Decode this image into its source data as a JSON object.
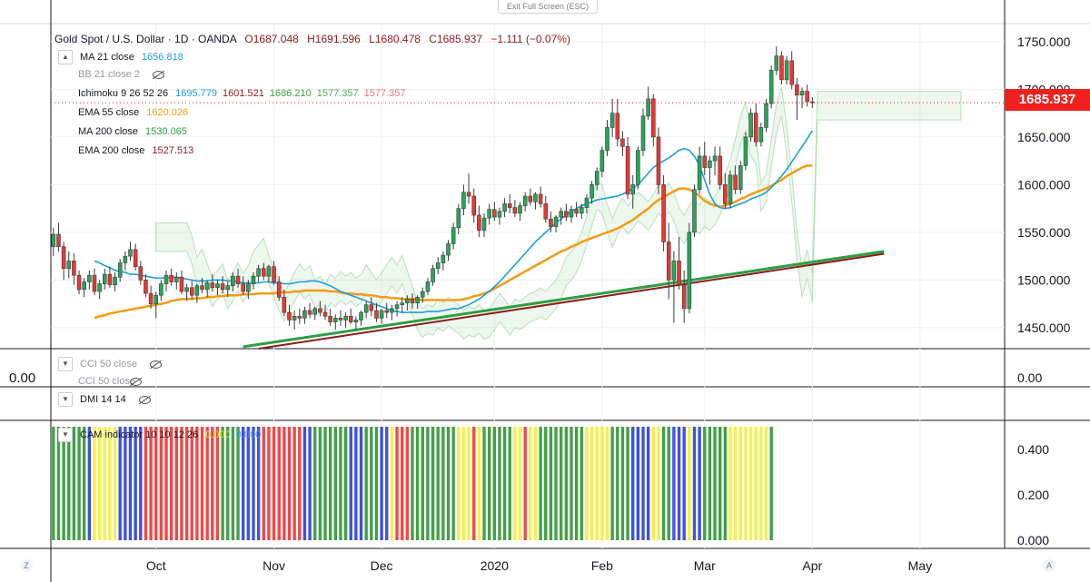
{
  "header": {
    "exit_fullscreen": "Exit Full Screen (ESC)",
    "symbol": "Gold Spot / U.S. Dollar · 1D · OANDA",
    "open": "O1687.048",
    "high": "H1691.596",
    "low": "L1680.478",
    "close": "C1685.937",
    "change": "−1.111 (−0.07%)"
  },
  "indicators": [
    {
      "name": "MA 21 close",
      "values": [
        "1656.818"
      ],
      "colors": [
        "#1e9ed8"
      ],
      "hidden": false
    },
    {
      "name": "BB 21 close 2",
      "values": [],
      "colors": [],
      "hidden": true
    },
    {
      "name": "Ichimoku 9 26 52 26",
      "values": [
        "1695.779",
        "1601.521",
        "1686.210",
        "1577.357",
        "1577.357"
      ],
      "colors": [
        "#2196f3",
        "#8a1c1c",
        "#43a047",
        "#4caf50",
        "#e57373"
      ],
      "hidden": false
    },
    {
      "name": "EMA 55 close",
      "values": [
        "1620.026"
      ],
      "colors": [
        "#f39c12"
      ],
      "hidden": false
    },
    {
      "name": "MA 200 close",
      "values": [
        "1530.065"
      ],
      "colors": [
        "#2e9e44"
      ],
      "hidden": false
    },
    {
      "name": "EMA 200 close",
      "values": [
        "1527.513"
      ],
      "colors": [
        "#8a1c1c"
      ],
      "hidden": false
    }
  ],
  "sub_panels": {
    "cci_1": "CCI 50 close",
    "cci_2": "CCI 50 close",
    "dmi": "DMI 14 14",
    "cam": "CAM indicator 10 10 12 26",
    "cam_values": [
      "0.000",
      "0.000"
    ],
    "cci_zero": "0.00",
    "cci_zero_left": "0.00"
  },
  "price_badge": "1685.937",
  "corner_left": "Z",
  "corner_right": "A",
  "chart_data": {
    "type": "candlestick",
    "price_axis": {
      "ticks": [
        1450,
        1500,
        1550,
        1600,
        1650,
        1700,
        1750
      ],
      "labels": [
        "1450.000",
        "1500.000",
        "1550.000",
        "1600.000",
        "1650.000",
        "1700.000",
        "1750.000"
      ],
      "range": [
        1428,
        1768
      ]
    },
    "cam_axis": {
      "ticks": [
        0,
        0.2,
        0.4
      ],
      "labels": [
        "0.000",
        "0.200",
        "0.400"
      ],
      "range": [
        0,
        0.5
      ]
    },
    "x_labels": [
      "Oct",
      "Nov",
      "Dec",
      "2020",
      "Feb",
      "Mar",
      "Apr",
      "May"
    ],
    "x_label_bars": [
      20,
      43,
      64,
      86,
      107,
      127,
      148,
      169
    ],
    "total_slots": 186,
    "last_bar": 161,
    "current_price": 1685.937,
    "ohlc": [
      [
        1535,
        1555,
        1525,
        1548
      ],
      [
        1548,
        1560,
        1530,
        1535
      ],
      [
        1535,
        1540,
        1500,
        1512
      ],
      [
        1512,
        1530,
        1502,
        1520
      ],
      [
        1520,
        1528,
        1495,
        1505
      ],
      [
        1505,
        1510,
        1485,
        1490
      ],
      [
        1490,
        1502,
        1482,
        1498
      ],
      [
        1498,
        1510,
        1490,
        1505
      ],
      [
        1505,
        1512,
        1484,
        1488
      ],
      [
        1488,
        1500,
        1480,
        1496
      ],
      [
        1496,
        1512,
        1490,
        1506
      ],
      [
        1506,
        1514,
        1492,
        1495
      ],
      [
        1495,
        1508,
        1488,
        1503
      ],
      [
        1503,
        1522,
        1498,
        1518
      ],
      [
        1518,
        1530,
        1510,
        1525
      ],
      [
        1525,
        1540,
        1520,
        1532
      ],
      [
        1532,
        1538,
        1510,
        1514
      ],
      [
        1514,
        1520,
        1495,
        1500
      ],
      [
        1500,
        1506,
        1482,
        1486
      ],
      [
        1486,
        1494,
        1470,
        1475
      ],
      [
        1475,
        1488,
        1460,
        1484
      ],
      [
        1484,
        1500,
        1478,
        1496
      ],
      [
        1496,
        1510,
        1488,
        1505
      ],
      [
        1505,
        1512,
        1494,
        1498
      ],
      [
        1498,
        1508,
        1490,
        1503
      ],
      [
        1503,
        1510,
        1485,
        1488
      ],
      [
        1488,
        1496,
        1478,
        1492
      ],
      [
        1492,
        1500,
        1480,
        1484
      ],
      [
        1484,
        1496,
        1476,
        1494
      ],
      [
        1494,
        1502,
        1486,
        1490
      ],
      [
        1490,
        1500,
        1482,
        1497
      ],
      [
        1497,
        1506,
        1488,
        1492
      ],
      [
        1492,
        1500,
        1484,
        1496
      ],
      [
        1496,
        1504,
        1486,
        1490
      ],
      [
        1490,
        1498,
        1482,
        1494
      ],
      [
        1494,
        1508,
        1488,
        1504
      ],
      [
        1504,
        1512,
        1492,
        1496
      ],
      [
        1496,
        1504,
        1484,
        1488
      ],
      [
        1488,
        1500,
        1480,
        1496
      ],
      [
        1496,
        1508,
        1490,
        1504
      ],
      [
        1504,
        1516,
        1498,
        1512
      ],
      [
        1512,
        1518,
        1500,
        1504
      ],
      [
        1504,
        1516,
        1498,
        1514
      ],
      [
        1514,
        1520,
        1495,
        1498
      ],
      [
        1498,
        1504,
        1478,
        1482
      ],
      [
        1482,
        1490,
        1462,
        1466
      ],
      [
        1466,
        1474,
        1452,
        1458
      ],
      [
        1458,
        1468,
        1448,
        1462
      ],
      [
        1462,
        1470,
        1454,
        1460
      ],
      [
        1460,
        1472,
        1454,
        1468
      ],
      [
        1468,
        1476,
        1460,
        1464
      ],
      [
        1464,
        1472,
        1458,
        1470
      ],
      [
        1470,
        1478,
        1462,
        1466
      ],
      [
        1466,
        1474,
        1458,
        1462
      ],
      [
        1462,
        1470,
        1452,
        1456
      ],
      [
        1456,
        1464,
        1448,
        1460
      ],
      [
        1460,
        1468,
        1452,
        1458
      ],
      [
        1458,
        1466,
        1450,
        1462
      ],
      [
        1462,
        1470,
        1454,
        1456
      ],
      [
        1456,
        1462,
        1448,
        1458
      ],
      [
        1458,
        1468,
        1452,
        1466
      ],
      [
        1466,
        1478,
        1460,
        1474
      ],
      [
        1474,
        1482,
        1462,
        1468
      ],
      [
        1468,
        1476,
        1456,
        1460
      ],
      [
        1460,
        1470,
        1454,
        1468
      ],
      [
        1468,
        1476,
        1460,
        1466
      ],
      [
        1466,
        1474,
        1458,
        1470
      ],
      [
        1470,
        1478,
        1462,
        1474
      ],
      [
        1474,
        1482,
        1466,
        1476
      ],
      [
        1476,
        1484,
        1468,
        1480
      ],
      [
        1480,
        1486,
        1470,
        1476
      ],
      [
        1476,
        1484,
        1470,
        1482
      ],
      [
        1482,
        1492,
        1476,
        1488
      ],
      [
        1488,
        1502,
        1484,
        1498
      ],
      [
        1498,
        1516,
        1494,
        1512
      ],
      [
        1512,
        1524,
        1506,
        1518
      ],
      [
        1518,
        1530,
        1510,
        1526
      ],
      [
        1526,
        1542,
        1520,
        1538
      ],
      [
        1538,
        1560,
        1532,
        1555
      ],
      [
        1555,
        1580,
        1548,
        1575
      ],
      [
        1575,
        1600,
        1568,
        1592
      ],
      [
        1592,
        1612,
        1580,
        1588
      ],
      [
        1588,
        1596,
        1560,
        1568
      ],
      [
        1568,
        1578,
        1545,
        1552
      ],
      [
        1552,
        1570,
        1545,
        1565
      ],
      [
        1565,
        1580,
        1558,
        1574
      ],
      [
        1574,
        1582,
        1562,
        1566
      ],
      [
        1566,
        1576,
        1558,
        1572
      ],
      [
        1572,
        1586,
        1566,
        1580
      ],
      [
        1580,
        1590,
        1570,
        1576
      ],
      [
        1576,
        1584,
        1566,
        1570
      ],
      [
        1570,
        1582,
        1562,
        1578
      ],
      [
        1578,
        1592,
        1572,
        1588
      ],
      [
        1588,
        1596,
        1578,
        1582
      ],
      [
        1582,
        1592,
        1574,
        1590
      ],
      [
        1590,
        1598,
        1576,
        1580
      ],
      [
        1580,
        1588,
        1560,
        1564
      ],
      [
        1564,
        1572,
        1550,
        1556
      ],
      [
        1556,
        1568,
        1550,
        1566
      ],
      [
        1566,
        1576,
        1558,
        1572
      ],
      [
        1572,
        1580,
        1562,
        1566
      ],
      [
        1566,
        1578,
        1560,
        1574
      ],
      [
        1574,
        1582,
        1566,
        1570
      ],
      [
        1570,
        1580,
        1564,
        1576
      ],
      [
        1576,
        1590,
        1570,
        1586
      ],
      [
        1586,
        1604,
        1580,
        1600
      ],
      [
        1600,
        1618,
        1594,
        1614
      ],
      [
        1614,
        1640,
        1608,
        1636
      ],
      [
        1636,
        1668,
        1630,
        1660
      ],
      [
        1660,
        1690,
        1650,
        1675
      ],
      [
        1675,
        1690,
        1640,
        1648
      ],
      [
        1648,
        1656,
        1630,
        1640
      ],
      [
        1640,
        1650,
        1585,
        1590
      ],
      [
        1590,
        1610,
        1575,
        1600
      ],
      [
        1600,
        1640,
        1595,
        1636
      ],
      [
        1636,
        1680,
        1630,
        1672
      ],
      [
        1672,
        1703,
        1668,
        1690
      ],
      [
        1690,
        1695,
        1640,
        1650
      ],
      [
        1650,
        1660,
        1590,
        1600
      ],
      [
        1600,
        1610,
        1530,
        1540
      ],
      [
        1540,
        1560,
        1480,
        1500
      ],
      [
        1500,
        1530,
        1455,
        1520
      ],
      [
        1520,
        1545,
        1490,
        1495
      ],
      [
        1495,
        1510,
        1455,
        1470
      ],
      [
        1470,
        1560,
        1465,
        1550
      ],
      [
        1550,
        1600,
        1545,
        1595
      ],
      [
        1595,
        1640,
        1590,
        1630
      ],
      [
        1630,
        1645,
        1610,
        1618
      ],
      [
        1618,
        1630,
        1600,
        1625
      ],
      [
        1625,
        1640,
        1610,
        1630
      ],
      [
        1630,
        1640,
        1595,
        1600
      ],
      [
        1600,
        1612,
        1575,
        1580
      ],
      [
        1580,
        1615,
        1575,
        1610
      ],
      [
        1610,
        1620,
        1590,
        1595
      ],
      [
        1595,
        1625,
        1590,
        1620
      ],
      [
        1620,
        1655,
        1615,
        1650
      ],
      [
        1650,
        1680,
        1645,
        1675
      ],
      [
        1675,
        1685,
        1640,
        1645
      ],
      [
        1645,
        1665,
        1640,
        1660
      ],
      [
        1660,
        1690,
        1655,
        1685
      ],
      [
        1685,
        1725,
        1680,
        1720
      ],
      [
        1720,
        1745,
        1715,
        1735
      ],
      [
        1735,
        1740,
        1705,
        1710
      ],
      [
        1710,
        1735,
        1705,
        1730
      ],
      [
        1730,
        1740,
        1700,
        1705
      ],
      [
        1705,
        1712,
        1668,
        1694
      ],
      [
        1694,
        1702,
        1680,
        1698
      ],
      [
        1698,
        1705,
        1682,
        1687
      ],
      [
        1687,
        1691.596,
        1680.478,
        1685.937
      ]
    ],
    "series": {
      "ma21": [
        1520,
        1518,
        1515,
        1513,
        1510,
        1509,
        1508,
        1506,
        1506,
        1505,
        1504,
        1503,
        1502,
        1502,
        1502,
        1503,
        1503,
        1502,
        1501,
        1500,
        1499,
        1499,
        1499,
        1500,
        1500,
        1500,
        1499,
        1499,
        1498,
        1497,
        1497,
        1497,
        1497,
        1498,
        1498,
        1497,
        1497,
        1496,
        1496,
        1497,
        1498,
        1498,
        1499,
        1499,
        1498,
        1496,
        1494,
        1491,
        1488,
        1486,
        1484,
        1482,
        1480,
        1478,
        1476,
        1474,
        1472,
        1470,
        1468,
        1467,
        1466,
        1466,
        1466,
        1466,
        1466,
        1467,
        1467,
        1467,
        1468,
        1469,
        1470,
        1470,
        1472,
        1474,
        1477,
        1480,
        1484,
        1488,
        1493,
        1498,
        1504,
        1510,
        1516,
        1522,
        1528,
        1534,
        1540,
        1545,
        1550,
        1555,
        1560,
        1564,
        1568,
        1572,
        1575,
        1578,
        1580,
        1582,
        1584,
        1585,
        1586,
        1587,
        1588,
        1590,
        1593,
        1596,
        1600,
        1606,
        1612,
        1618,
        1622,
        1625,
        1628,
        1632,
        1636,
        1638,
        1636,
        1630,
        1620,
        1605,
        1590,
        1580,
        1576,
        1575,
        1576,
        1578,
        1580,
        1582,
        1585,
        1587,
        1589,
        1592,
        1597,
        1603,
        1609,
        1616,
        1624,
        1632,
        1640,
        1648,
        1656.8
      ],
      "ema55": [
        1460,
        1462,
        1463,
        1465,
        1466,
        1467,
        1468,
        1469,
        1470,
        1471,
        1472,
        1473,
        1474,
        1475,
        1476,
        1478,
        1479,
        1480,
        1480,
        1480,
        1481,
        1481,
        1482,
        1482,
        1483,
        1483,
        1484,
        1484,
        1484,
        1485,
        1485,
        1485,
        1486,
        1486,
        1486,
        1486,
        1487,
        1487,
        1487,
        1488,
        1488,
        1489,
        1489,
        1489,
        1489,
        1489,
        1488,
        1488,
        1487,
        1486,
        1486,
        1485,
        1485,
        1484,
        1484,
        1483,
        1482,
        1482,
        1481,
        1481,
        1480,
        1480,
        1480,
        1480,
        1479,
        1479,
        1479,
        1479,
        1479,
        1479,
        1479,
        1479,
        1480,
        1481,
        1483,
        1484,
        1486,
        1488,
        1491,
        1494,
        1497,
        1500,
        1503,
        1506,
        1509,
        1512,
        1515,
        1518,
        1521,
        1524,
        1527,
        1530,
        1532,
        1535,
        1537,
        1540,
        1542,
        1544,
        1546,
        1548,
        1550,
        1552,
        1554,
        1557,
        1560,
        1563,
        1567,
        1571,
        1575,
        1580,
        1584,
        1587,
        1590,
        1593,
        1596,
        1596,
        1595,
        1592,
        1588,
        1583,
        1580,
        1578,
        1577,
        1578,
        1580,
        1582,
        1585,
        1587,
        1590,
        1592,
        1594,
        1596,
        1599,
        1602,
        1605,
        1609,
        1612,
        1615,
        1618,
        1620,
        1620.0
      ],
      "ma200_start": [
        37,
        1430
      ],
      "ma200_end": [
        162,
        1530
      ],
      "ema200_start": [
        40,
        1428
      ],
      "ema200_end": [
        162,
        1527.5
      ]
    },
    "cam_colors_pattern": [
      "g",
      "g",
      "g",
      "g",
      "g",
      "g",
      "g",
      "b",
      "y",
      "y",
      "y",
      "y",
      "y",
      "b",
      "b",
      "b",
      "b",
      "b",
      "r",
      "r",
      "r",
      "r",
      "r",
      "r",
      "r",
      "r",
      "r",
      "r",
      "r",
      "r",
      "r",
      "r",
      "r",
      "g",
      "g",
      "g",
      "g",
      "b",
      "b",
      "b",
      "b",
      "r",
      "r",
      "r",
      "r",
      "r",
      "r",
      "r",
      "r",
      "b",
      "b",
      "g",
      "g",
      "g",
      "g",
      "g",
      "g",
      "g",
      "b",
      "b",
      "b",
      "g",
      "g",
      "g",
      "b",
      "b",
      "y",
      "r",
      "r",
      "r",
      "g",
      "g",
      "g",
      "g",
      "g",
      "g",
      "g",
      "g",
      "g",
      "y",
      "y",
      "y",
      "r",
      "y",
      "g",
      "g",
      "g",
      "g",
      "g",
      "g",
      "y",
      "y",
      "r",
      "y",
      "y",
      "g",
      "g",
      "g",
      "g",
      "g",
      "g",
      "g",
      "g",
      "g",
      "y",
      "y",
      "y",
      "y",
      "y",
      "g",
      "g",
      "g",
      "g",
      "b",
      "b",
      "b",
      "b",
      "y",
      "y",
      "g",
      "g",
      "b",
      "b",
      "b",
      "y",
      "b",
      "b",
      "g",
      "g",
      "g",
      "g",
      "g",
      "y",
      "y",
      "y",
      "y",
      "y",
      "y",
      "y",
      "y",
      "g"
    ]
  }
}
